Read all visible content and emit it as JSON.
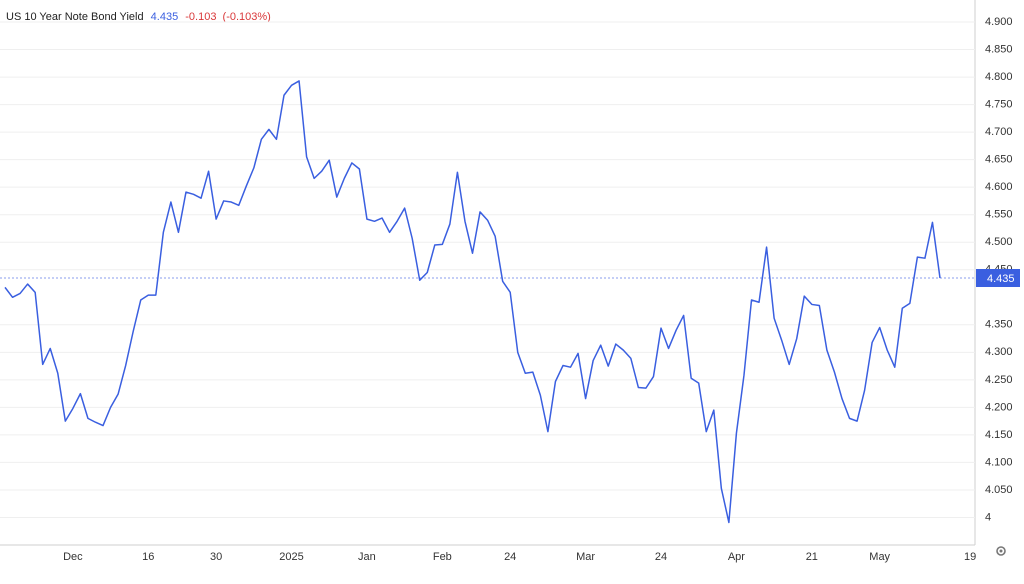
{
  "chart_data": {
    "type": "line",
    "series": [
      {
        "name": "US 10 Year Note Bond Yield",
        "color": "#3a5fe0",
        "values": [
          4.418,
          4.4,
          4.407,
          4.424,
          4.409,
          4.278,
          4.307,
          4.262,
          4.175,
          4.198,
          4.225,
          4.18,
          4.173,
          4.167,
          4.2,
          4.224,
          4.276,
          4.338,
          4.395,
          4.404,
          4.404,
          4.518,
          4.573,
          4.518,
          4.591,
          4.587,
          4.58,
          4.629,
          4.542,
          4.575,
          4.573,
          4.567,
          4.602,
          4.635,
          4.687,
          4.705,
          4.687,
          4.767,
          4.785,
          4.793,
          4.655,
          4.616,
          4.629,
          4.649,
          4.582,
          4.616,
          4.644,
          4.633,
          4.542,
          4.538,
          4.544,
          4.518,
          4.538,
          4.562,
          4.507,
          4.431,
          4.445,
          4.495,
          4.496,
          4.533,
          4.627,
          4.538,
          4.48,
          4.555,
          4.54,
          4.511,
          4.429,
          4.409,
          4.3,
          4.262,
          4.264,
          4.222,
          4.156,
          4.247,
          4.276,
          4.273,
          4.298,
          4.216,
          4.285,
          4.313,
          4.275,
          4.315,
          4.304,
          4.289,
          4.236,
          4.235,
          4.256,
          4.344,
          4.307,
          4.34,
          4.367,
          4.253,
          4.244,
          4.156,
          4.195,
          4.053,
          3.991,
          4.153,
          4.258,
          4.395,
          4.391,
          4.491,
          4.362,
          4.322,
          4.278,
          4.325,
          4.402,
          4.387,
          4.385,
          4.304,
          4.264,
          4.216,
          4.18,
          4.175,
          4.231,
          4.318,
          4.345,
          4.304,
          4.273,
          4.38,
          4.389,
          4.473,
          4.471,
          4.536,
          4.435,
          null,
          null,
          null,
          null
        ]
      }
    ],
    "change": -0.103,
    "change_pct": "(-0.103%)",
    "categories": [
      null,
      null,
      null,
      null,
      null,
      null,
      null,
      null,
      null,
      "Dec",
      null,
      null,
      null,
      null,
      null,
      null,
      null,
      null,
      null,
      "16",
      null,
      null,
      null,
      null,
      null,
      null,
      null,
      null,
      "30",
      null,
      null,
      null,
      null,
      null,
      null,
      null,
      null,
      null,
      "2025",
      null,
      null,
      null,
      null,
      null,
      null,
      null,
      null,
      null,
      "Jan",
      null,
      null,
      null,
      null,
      null,
      null,
      null,
      null,
      null,
      "Feb",
      null,
      null,
      null,
      null,
      null,
      null,
      null,
      null,
      "24",
      null,
      null,
      null,
      null,
      null,
      null,
      null,
      null,
      null,
      "Mar",
      null,
      null,
      null,
      null,
      null,
      null,
      null,
      null,
      null,
      "24",
      null,
      null,
      null,
      null,
      null,
      null,
      null,
      null,
      null,
      "Apr",
      null,
      null,
      null,
      null,
      null,
      null,
      null,
      null,
      null,
      "21",
      null,
      null,
      null,
      null,
      null,
      null,
      null,
      null,
      "May",
      null,
      null,
      null,
      null,
      null,
      null,
      null,
      null,
      null,
      null,
      null,
      "19"
    ],
    "ylim": [
      3.95,
      4.94
    ],
    "yticks": [
      4,
      {
        "value": 4.05,
        "label": "4.050"
      },
      {
        "value": 4.1,
        "label": "4.100"
      },
      {
        "value": 4.15,
        "label": "4.150"
      },
      {
        "value": 4.2,
        "label": "4.200"
      },
      {
        "value": 4.25,
        "label": "4.250"
      },
      {
        "value": 4.3,
        "label": "4.300"
      },
      {
        "value": 4.35,
        "label": "4.350"
      },
      {
        "value": 4.45,
        "label": "4.450"
      },
      {
        "value": 4.5,
        "label": "4.500"
      },
      {
        "value": 4.55,
        "label": "4.550"
      },
      {
        "value": 4.6,
        "label": "4.600"
      },
      {
        "value": 4.65,
        "label": "4.650"
      },
      {
        "value": 4.7,
        "label": "4.700"
      },
      {
        "value": 4.75,
        "label": "4.750"
      },
      {
        "value": 4.8,
        "label": "4.800"
      },
      {
        "value": 4.85,
        "label": "4.850"
      },
      {
        "value": 4.9,
        "label": "4.900"
      }
    ],
    "grid": true
  }
}
